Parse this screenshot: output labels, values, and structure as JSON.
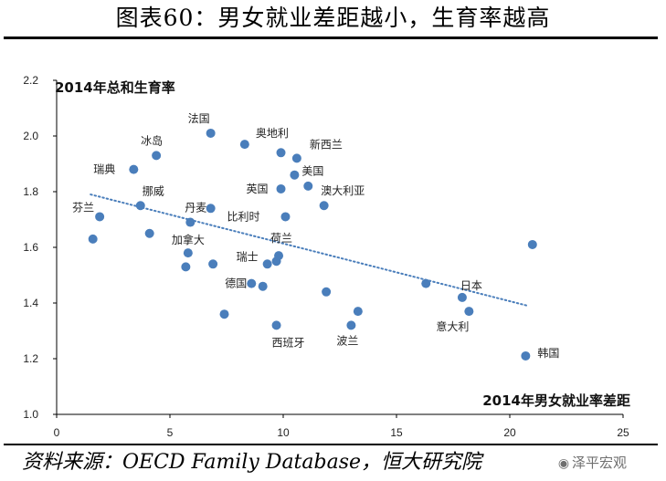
{
  "header": {
    "title": "图表60：男女就业差距越小，生育率越高"
  },
  "footer": {
    "source": "资料来源：OECD Family Database，恒大研究院",
    "watermark": "泽平宏观"
  },
  "colors": {
    "point": "#4a7ebb",
    "trend": "#4a7ebb",
    "axis": "#000000"
  },
  "chart_data": {
    "type": "scatter",
    "ylabel": "2014年总和生育率",
    "xlabel": "2014年男女就业率差距",
    "xlim": [
      0,
      25
    ],
    "ylim": [
      1.0,
      2.2
    ],
    "xticks": [
      0,
      5,
      10,
      15,
      20,
      25
    ],
    "yticks": [
      "1.0",
      "1.2",
      "1.4",
      "1.6",
      "1.8",
      "2.0",
      "2.2"
    ],
    "points": [
      {
        "label": "法国",
        "x": 6.8,
        "y": 2.01
      },
      {
        "label": "奥地利",
        "x": 8.3,
        "y": 1.97
      },
      {
        "label": "冰岛",
        "x": 4.4,
        "y": 1.93
      },
      {
        "label": "瑞典",
        "x": 3.4,
        "y": 1.88
      },
      {
        "label": "新西兰",
        "x": 10.6,
        "y": 1.92
      },
      {
        "label": "",
        "x": 9.9,
        "y": 1.94
      },
      {
        "label": "美国",
        "x": 10.5,
        "y": 1.86
      },
      {
        "label": "澳大利亚",
        "x": 11.1,
        "y": 1.82
      },
      {
        "label": "英国",
        "x": 9.9,
        "y": 1.81
      },
      {
        "label": "挪威",
        "x": 3.7,
        "y": 1.75
      },
      {
        "label": "芬兰",
        "x": 1.9,
        "y": 1.71
      },
      {
        "label": "丹麦",
        "x": 5.9,
        "y": 1.69
      },
      {
        "label": "",
        "x": 6.8,
        "y": 1.74
      },
      {
        "label": "",
        "x": 11.8,
        "y": 1.75
      },
      {
        "label": "比利时",
        "x": 10.1,
        "y": 1.71
      },
      {
        "label": "",
        "x": 4.1,
        "y": 1.65
      },
      {
        "label": "",
        "x": 1.6,
        "y": 1.63
      },
      {
        "label": "加拿大",
        "x": 5.8,
        "y": 1.58
      },
      {
        "label": "",
        "x": 5.7,
        "y": 1.53
      },
      {
        "label": "",
        "x": 6.9,
        "y": 1.54
      },
      {
        "label": "荷兰",
        "x": 9.8,
        "y": 1.57
      },
      {
        "label": "瑞士",
        "x": 9.3,
        "y": 1.54
      },
      {
        "label": "",
        "x": 9.7,
        "y": 1.55
      },
      {
        "label": "德国",
        "x": 8.6,
        "y": 1.47
      },
      {
        "label": "",
        "x": 9.1,
        "y": 1.46
      },
      {
        "label": "",
        "x": 11.9,
        "y": 1.44
      },
      {
        "label": "",
        "x": 7.4,
        "y": 1.36
      },
      {
        "label": "西班牙",
        "x": 9.7,
        "y": 1.32
      },
      {
        "label": "波兰",
        "x": 13.0,
        "y": 1.32
      },
      {
        "label": "",
        "x": 13.3,
        "y": 1.37
      },
      {
        "label": "",
        "x": 16.3,
        "y": 1.47
      },
      {
        "label": "日本",
        "x": 17.9,
        "y": 1.42
      },
      {
        "label": "意大利",
        "x": 18.2,
        "y": 1.37
      },
      {
        "label": "",
        "x": 21.0,
        "y": 1.61
      },
      {
        "label": "韩国",
        "x": 20.7,
        "y": 1.21
      }
    ],
    "trendline": {
      "style": "dotted",
      "start": {
        "x": 1.5,
        "y": 1.79
      },
      "end": {
        "x": 20.8,
        "y": 1.39
      }
    }
  }
}
